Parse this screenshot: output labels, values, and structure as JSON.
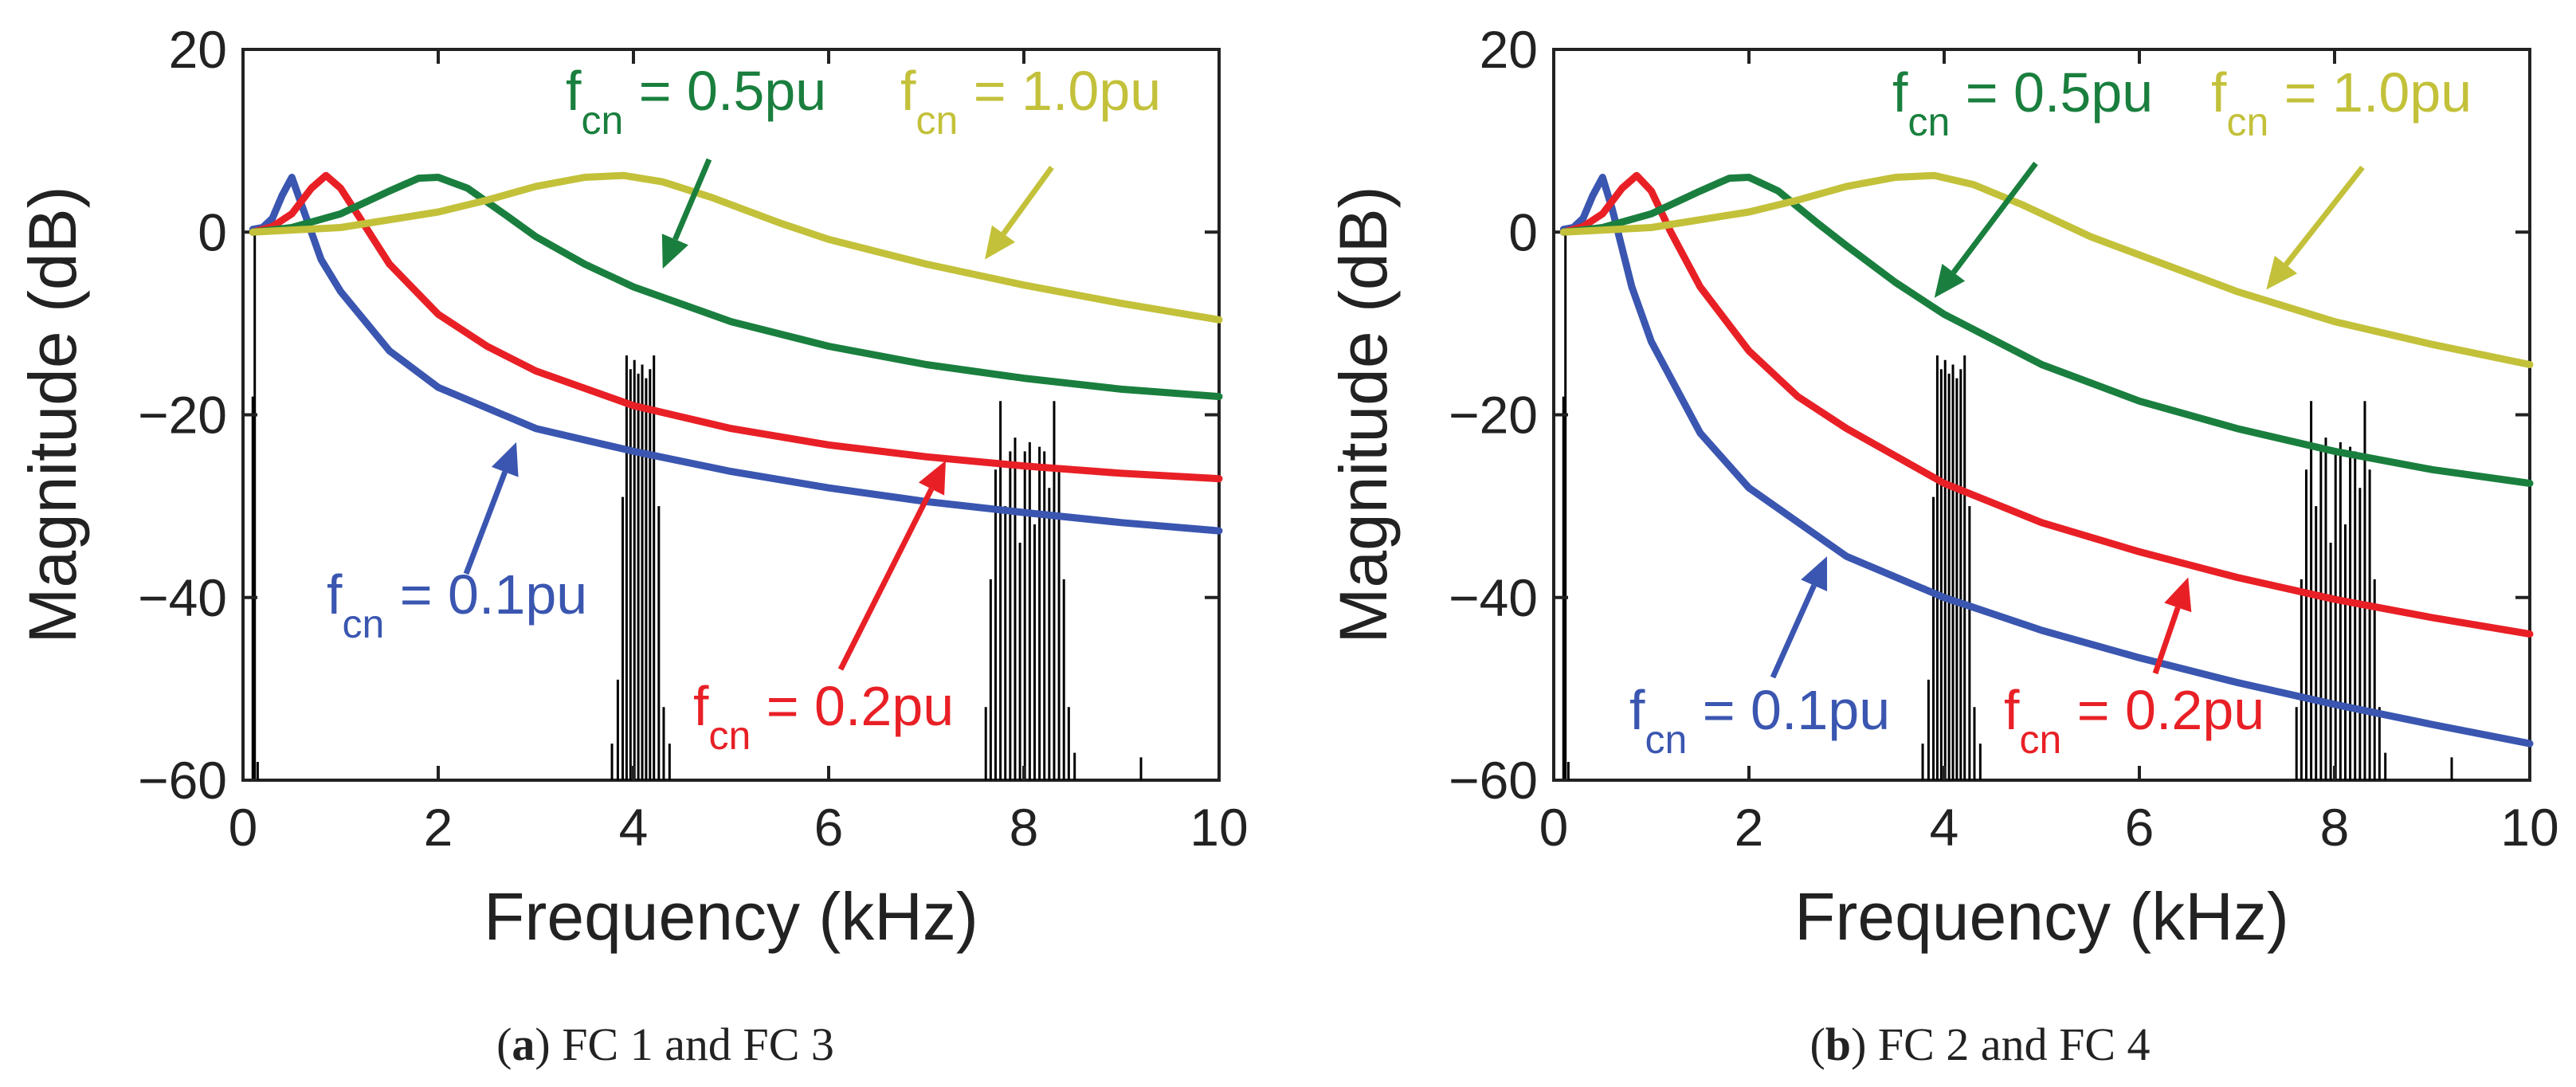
{
  "panels": [
    {
      "id": "a",
      "caption_letter": "a",
      "caption_text": "FC 1 and FC 3",
      "annotations": [
        {
          "series": 0,
          "base": "f",
          "sub": "cn",
          "rest": " = 0.1pu"
        },
        {
          "series": 1,
          "base": "f",
          "sub": "cn",
          "rest": " = 0.2pu"
        },
        {
          "series": 2,
          "base": "f",
          "sub": "cn",
          "rest": " = 0.5pu"
        },
        {
          "series": 3,
          "base": "f",
          "sub": "cn",
          "rest": " = 1.0pu"
        }
      ]
    },
    {
      "id": "b",
      "caption_letter": "b",
      "caption_text": "FC 2 and FC 4",
      "annotations": [
        {
          "series": 0,
          "base": "f",
          "sub": "cn",
          "rest": " = 0.1pu"
        },
        {
          "series": 1,
          "base": "f",
          "sub": "cn",
          "rest": " = 0.2pu"
        },
        {
          "series": 2,
          "base": "f",
          "sub": "cn",
          "rest": " = 0.5pu"
        },
        {
          "series": 3,
          "base": "f",
          "sub": "cn",
          "rest": " = 1.0pu"
        }
      ]
    }
  ],
  "chart_data": [
    {
      "type": "line",
      "title": "",
      "xlabel": "Frequency (kHz)",
      "ylabel": "Magnitude (dB)",
      "xlim": [
        0,
        10
      ],
      "ylim": [
        -60,
        20
      ],
      "xticks": [
        0,
        2,
        4,
        6,
        8,
        10
      ],
      "yticks": [
        -60,
        -40,
        -20,
        0,
        20
      ],
      "grid": false,
      "series": [
        {
          "name": "f_cn = 0.1pu",
          "color": "#3a56b0",
          "x": [
            0.1,
            0.2,
            0.3,
            0.4,
            0.5,
            0.6,
            0.8,
            1.0,
            1.5,
            2.0,
            3.0,
            4.0,
            5.0,
            6.0,
            7.0,
            8.0,
            9.0,
            10.0
          ],
          "y": [
            0.3,
            0.5,
            1.5,
            4.0,
            6.0,
            3.0,
            -3.0,
            -6.5,
            -13.0,
            -17.0,
            -21.5,
            -24.0,
            -26.2,
            -28.0,
            -29.5,
            -30.7,
            -31.8,
            -32.7
          ]
        },
        {
          "name": "f_cn = 0.2pu",
          "color": "#e82026",
          "x": [
            0.1,
            0.3,
            0.5,
            0.7,
            0.85,
            1.0,
            1.2,
            1.5,
            2.0,
            2.5,
            3.0,
            4.0,
            5.0,
            6.0,
            7.0,
            8.0,
            9.0,
            10.0
          ],
          "y": [
            0.0,
            0.6,
            2.0,
            4.8,
            6.2,
            4.8,
            1.5,
            -3.5,
            -9.0,
            -12.5,
            -15.2,
            -19.0,
            -21.5,
            -23.3,
            -24.6,
            -25.6,
            -26.4,
            -27.0
          ]
        },
        {
          "name": "f_cn = 0.5pu",
          "color": "#1a7f3e",
          "x": [
            0.1,
            0.5,
            1.0,
            1.5,
            1.8,
            2.0,
            2.3,
            2.7,
            3.0,
            3.5,
            4.0,
            5.0,
            6.0,
            7.0,
            8.0,
            9.0,
            10.0
          ],
          "y": [
            0.0,
            0.5,
            2.0,
            4.5,
            5.9,
            6.0,
            4.8,
            1.8,
            -0.5,
            -3.5,
            -6.0,
            -9.8,
            -12.5,
            -14.5,
            -16.0,
            -17.2,
            -18.0
          ]
        },
        {
          "name": "f_cn = 1.0pu",
          "color": "#c3c13a",
          "x": [
            0.1,
            1.0,
            2.0,
            2.5,
            3.0,
            3.5,
            3.9,
            4.3,
            4.8,
            5.5,
            6.0,
            7.0,
            8.0,
            9.0,
            10.0
          ],
          "y": [
            0.0,
            0.5,
            2.2,
            3.5,
            5.0,
            6.0,
            6.2,
            5.5,
            3.8,
            1.0,
            -0.8,
            -3.5,
            -5.8,
            -7.8,
            -9.6
          ]
        }
      ],
      "spectrum": {
        "color": "#000000",
        "spikes": [
          {
            "x": 0.1,
            "y": -18
          },
          {
            "x": 0.12,
            "y": 0
          },
          {
            "x": 0.15,
            "y": -58
          },
          {
            "x": 3.78,
            "y": -56
          },
          {
            "x": 3.84,
            "y": -49
          },
          {
            "x": 3.89,
            "y": -29
          },
          {
            "x": 3.93,
            "y": -13.5
          },
          {
            "x": 3.97,
            "y": -15
          },
          {
            "x": 4.01,
            "y": -14
          },
          {
            "x": 4.05,
            "y": -15.5
          },
          {
            "x": 4.09,
            "y": -14.5
          },
          {
            "x": 4.13,
            "y": -16
          },
          {
            "x": 4.17,
            "y": -15
          },
          {
            "x": 4.21,
            "y": -13.5
          },
          {
            "x": 4.26,
            "y": -30
          },
          {
            "x": 4.31,
            "y": -52
          },
          {
            "x": 4.37,
            "y": -56
          },
          {
            "x": 7.61,
            "y": -52
          },
          {
            "x": 7.66,
            "y": -38
          },
          {
            "x": 7.71,
            "y": -26
          },
          {
            "x": 7.76,
            "y": -18.5
          },
          {
            "x": 7.81,
            "y": -30
          },
          {
            "x": 7.86,
            "y": -24
          },
          {
            "x": 7.91,
            "y": -22.5
          },
          {
            "x": 7.96,
            "y": -34
          },
          {
            "x": 8.01,
            "y": -24
          },
          {
            "x": 8.06,
            "y": -23
          },
          {
            "x": 8.11,
            "y": -32
          },
          {
            "x": 8.16,
            "y": -23.5
          },
          {
            "x": 8.21,
            "y": -24
          },
          {
            "x": 8.26,
            "y": -28
          },
          {
            "x": 8.31,
            "y": -18.5
          },
          {
            "x": 8.36,
            "y": -26
          },
          {
            "x": 8.41,
            "y": -38
          },
          {
            "x": 8.46,
            "y": -52
          },
          {
            "x": 8.52,
            "y": -57
          },
          {
            "x": 9.2,
            "y": -57.5
          }
        ]
      }
    },
    {
      "type": "line",
      "title": "",
      "xlabel": "Frequency (kHz)",
      "ylabel": "Magnitude (dB)",
      "xlim": [
        0,
        10
      ],
      "ylim": [
        -60,
        20
      ],
      "xticks": [
        0,
        2,
        4,
        6,
        8,
        10
      ],
      "yticks": [
        -60,
        -40,
        -20,
        0,
        20
      ],
      "grid": false,
      "series": [
        {
          "name": "f_cn = 0.1pu",
          "color": "#3a56b0",
          "x": [
            0.1,
            0.2,
            0.3,
            0.4,
            0.5,
            0.6,
            0.8,
            1.0,
            1.5,
            2.0,
            3.0,
            4.0,
            5.0,
            6.0,
            7.0,
            8.0,
            9.0,
            10.0
          ],
          "y": [
            0.3,
            0.5,
            1.5,
            4.0,
            6.0,
            2.5,
            -6.0,
            -12.0,
            -22.0,
            -28.0,
            -35.5,
            -40.0,
            -43.6,
            -46.6,
            -49.3,
            -51.7,
            -53.9,
            -56.0
          ]
        },
        {
          "name": "f_cn = 0.2pu",
          "color": "#e82026",
          "x": [
            0.1,
            0.3,
            0.5,
            0.7,
            0.85,
            1.0,
            1.2,
            1.5,
            2.0,
            2.5,
            3.0,
            4.0,
            5.0,
            6.0,
            7.0,
            8.0,
            9.0,
            10.0
          ],
          "y": [
            0.0,
            0.6,
            2.0,
            4.8,
            6.2,
            4.5,
            0.0,
            -6.0,
            -13.0,
            -18.0,
            -21.5,
            -27.5,
            -31.8,
            -35.0,
            -37.8,
            -40.2,
            -42.2,
            -44.0
          ]
        },
        {
          "name": "f_cn = 0.5pu",
          "color": "#1a7f3e",
          "x": [
            0.1,
            0.5,
            1.0,
            1.5,
            1.8,
            2.0,
            2.3,
            2.7,
            3.0,
            3.5,
            4.0,
            5.0,
            6.0,
            7.0,
            8.0,
            9.0,
            10.0
          ],
          "y": [
            0.0,
            0.5,
            2.0,
            4.5,
            5.9,
            6.0,
            4.5,
            1.0,
            -1.5,
            -5.5,
            -9.0,
            -14.5,
            -18.5,
            -21.5,
            -24.0,
            -26.0,
            -27.5
          ]
        },
        {
          "name": "f_cn = 1.0pu",
          "color": "#c3c13a",
          "x": [
            0.1,
            1.0,
            2.0,
            2.5,
            3.0,
            3.5,
            3.9,
            4.3,
            4.8,
            5.5,
            6.0,
            7.0,
            8.0,
            9.0,
            10.0
          ],
          "y": [
            0.0,
            0.5,
            2.2,
            3.5,
            5.0,
            6.0,
            6.2,
            5.2,
            3.0,
            -0.5,
            -2.5,
            -6.5,
            -9.8,
            -12.3,
            -14.5
          ]
        }
      ],
      "spectrum": {
        "color": "#000000",
        "spikes": [
          {
            "x": 0.1,
            "y": -18
          },
          {
            "x": 0.12,
            "y": 0
          },
          {
            "x": 0.15,
            "y": -58
          },
          {
            "x": 3.78,
            "y": -56
          },
          {
            "x": 3.84,
            "y": -49
          },
          {
            "x": 3.89,
            "y": -29
          },
          {
            "x": 3.93,
            "y": -13.5
          },
          {
            "x": 3.97,
            "y": -15
          },
          {
            "x": 4.01,
            "y": -14
          },
          {
            "x": 4.05,
            "y": -15.5
          },
          {
            "x": 4.09,
            "y": -14.5
          },
          {
            "x": 4.13,
            "y": -16
          },
          {
            "x": 4.17,
            "y": -15
          },
          {
            "x": 4.21,
            "y": -13.5
          },
          {
            "x": 4.26,
            "y": -30
          },
          {
            "x": 4.31,
            "y": -52
          },
          {
            "x": 4.37,
            "y": -56
          },
          {
            "x": 7.61,
            "y": -52
          },
          {
            "x": 7.66,
            "y": -38
          },
          {
            "x": 7.71,
            "y": -26
          },
          {
            "x": 7.76,
            "y": -18.5
          },
          {
            "x": 7.81,
            "y": -30
          },
          {
            "x": 7.86,
            "y": -24
          },
          {
            "x": 7.91,
            "y": -22.5
          },
          {
            "x": 7.96,
            "y": -34
          },
          {
            "x": 8.01,
            "y": -24
          },
          {
            "x": 8.06,
            "y": -23
          },
          {
            "x": 8.11,
            "y": -32
          },
          {
            "x": 8.16,
            "y": -23.5
          },
          {
            "x": 8.21,
            "y": -24
          },
          {
            "x": 8.26,
            "y": -28
          },
          {
            "x": 8.31,
            "y": -18.5
          },
          {
            "x": 8.36,
            "y": -26
          },
          {
            "x": 8.41,
            "y": -38
          },
          {
            "x": 8.46,
            "y": -52
          },
          {
            "x": 8.52,
            "y": -57
          },
          {
            "x": 9.2,
            "y": -57.5
          }
        ]
      }
    }
  ]
}
